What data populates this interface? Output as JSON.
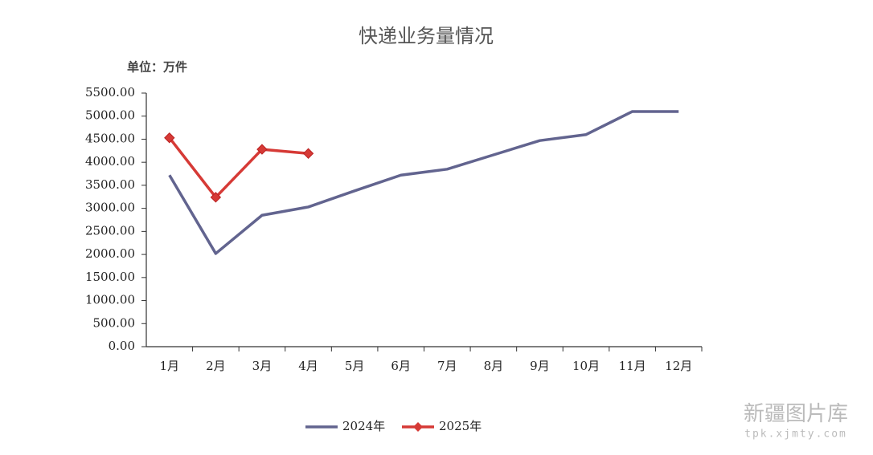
{
  "chart_data": {
    "type": "line",
    "title": "快递业务量情况",
    "unit_label": "单位：万件",
    "categories": [
      "1月",
      "2月",
      "3月",
      "4月",
      "5月",
      "6月",
      "7月",
      "8月",
      "9月",
      "10月",
      "11月",
      "12月"
    ],
    "series": [
      {
        "name": "2024年",
        "color": "#62648f",
        "marker": "none",
        "values": [
          3720,
          2020,
          2850,
          3030,
          3380,
          3720,
          3850,
          4160,
          4470,
          4600,
          5100,
          5100
        ]
      },
      {
        "name": "2025年",
        "color": "#d63a36",
        "marker": "diamond",
        "values": [
          4530,
          3240,
          4280,
          4190,
          null,
          null,
          null,
          null,
          null,
          null,
          null,
          null
        ]
      }
    ],
    "ylim": [
      0,
      5500
    ],
    "yticks": [
      {
        "value": 0,
        "label": "0.00"
      },
      {
        "value": 500,
        "label": "500.00"
      },
      {
        "value": 1000,
        "label": "1000.00"
      },
      {
        "value": 1500,
        "label": "1500.00"
      },
      {
        "value": 2000,
        "label": "2000.00"
      },
      {
        "value": 2500,
        "label": "2500.00"
      },
      {
        "value": 3000,
        "label": "3000.00"
      },
      {
        "value": 3500,
        "label": "3500.00"
      },
      {
        "value": 4000,
        "label": "4000.00"
      },
      {
        "value": 4500,
        "label": "4500.00"
      },
      {
        "value": 5000,
        "label": "5000.00"
      },
      {
        "value": 5500,
        "label": "5500.00"
      }
    ],
    "grid": false,
    "legend": "bottom",
    "watermark": {
      "name": "新疆图片库",
      "url": "tpk.xjmty.com"
    }
  }
}
